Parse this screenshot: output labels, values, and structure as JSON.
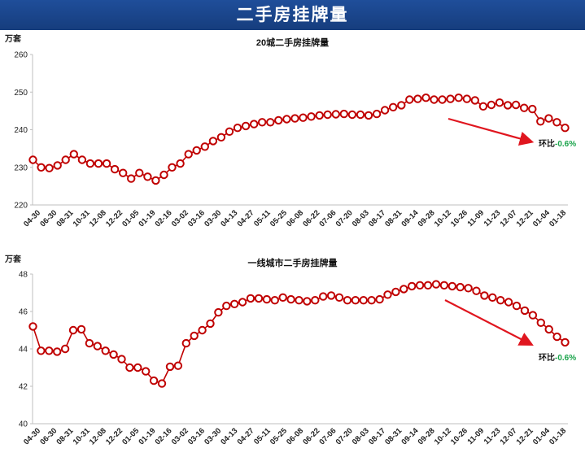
{
  "page": {
    "title": "二手房挂牌量"
  },
  "colors": {
    "banner": "#1f4e9a",
    "line": "#c00000",
    "marker_fill": "#ffffff",
    "arrow": "#e0161f",
    "pct": "#19a34a"
  },
  "chart_data": [
    {
      "type": "line",
      "title": "20城二手房挂牌量",
      "unit": "万套",
      "ylim": [
        220,
        260
      ],
      "yticks": [
        220,
        230,
        240,
        250,
        260
      ],
      "xtick_labels": [
        "04-30",
        "06-30",
        "08-31",
        "10-31",
        "12-08",
        "12-22",
        "01-05",
        "01-19",
        "02-16",
        "03-02",
        "03-16",
        "03-30",
        "04-13",
        "04-27",
        "05-11",
        "05-25",
        "06-08",
        "06-22",
        "07-06",
        "07-20",
        "08-03",
        "08-17",
        "08-31",
        "09-14",
        "09-28",
        "10-12",
        "10-26",
        "11-09",
        "11-23",
        "12-07",
        "12-21",
        "01-04",
        "01-18"
      ],
      "grid": false,
      "series": [
        {
          "values": [
            232,
            230,
            229.8,
            230.5,
            232,
            233.5,
            232,
            231,
            231,
            231,
            229.5,
            228.5,
            227,
            228.5,
            227.5,
            226.5,
            228,
            230,
            231,
            233.5,
            234.5,
            235.5,
            237,
            238,
            239.5,
            240.5,
            241,
            241.5,
            242,
            242,
            242.5,
            242.8,
            243,
            243.2,
            243.5,
            243.8,
            244,
            244.1,
            244.2,
            244,
            244,
            243.8,
            244.2,
            245.2,
            246,
            246.5,
            248,
            248.2,
            248.5,
            248,
            248,
            248.2,
            248.5,
            248.2,
            247.8,
            246.2,
            246.6,
            247.2,
            246.5,
            246.6,
            245.8,
            245.5,
            242.2,
            243,
            242,
            240.5
          ]
        }
      ],
      "annotation": {
        "label": "环比",
        "value": "-0.6%"
      }
    },
    {
      "type": "line",
      "title": "一线城市二手房挂牌量",
      "unit": "万套",
      "ylim": [
        40,
        48
      ],
      "yticks": [
        40,
        42,
        44,
        46,
        48
      ],
      "xtick_labels": [
        "04-30",
        "06-30",
        "08-31",
        "10-31",
        "12-08",
        "12-22",
        "01-05",
        "01-19",
        "02-16",
        "03-02",
        "03-16",
        "03-30",
        "04-13",
        "04-27",
        "05-11",
        "05-25",
        "06-08",
        "06-22",
        "07-06",
        "07-20",
        "08-03",
        "08-17",
        "08-31",
        "09-14",
        "09-28",
        "10-12",
        "10-26",
        "11-09",
        "11-23",
        "12-07",
        "12-21",
        "01-04",
        "01-18"
      ],
      "grid": false,
      "series": [
        {
          "values": [
            45.2,
            43.9,
            43.9,
            43.85,
            44,
            45,
            45.05,
            44.3,
            44.15,
            43.9,
            43.7,
            43.45,
            43,
            43,
            42.8,
            42.3,
            42.15,
            43.05,
            43.1,
            44.3,
            44.7,
            45,
            45.35,
            45.95,
            46.3,
            46.4,
            46.5,
            46.7,
            46.7,
            46.65,
            46.6,
            46.75,
            46.65,
            46.6,
            46.55,
            46.6,
            46.8,
            46.85,
            46.75,
            46.6,
            46.6,
            46.6,
            46.6,
            46.65,
            46.9,
            47.05,
            47.2,
            47.35,
            47.4,
            47.4,
            47.45,
            47.4,
            47.35,
            47.3,
            47.25,
            47.1,
            46.85,
            46.75,
            46.6,
            46.5,
            46.3,
            46.05,
            45.8,
            45.4,
            45.05,
            44.65,
            44.35
          ]
        }
      ],
      "annotation": {
        "label": "环比",
        "value": "-0.6%"
      }
    }
  ]
}
